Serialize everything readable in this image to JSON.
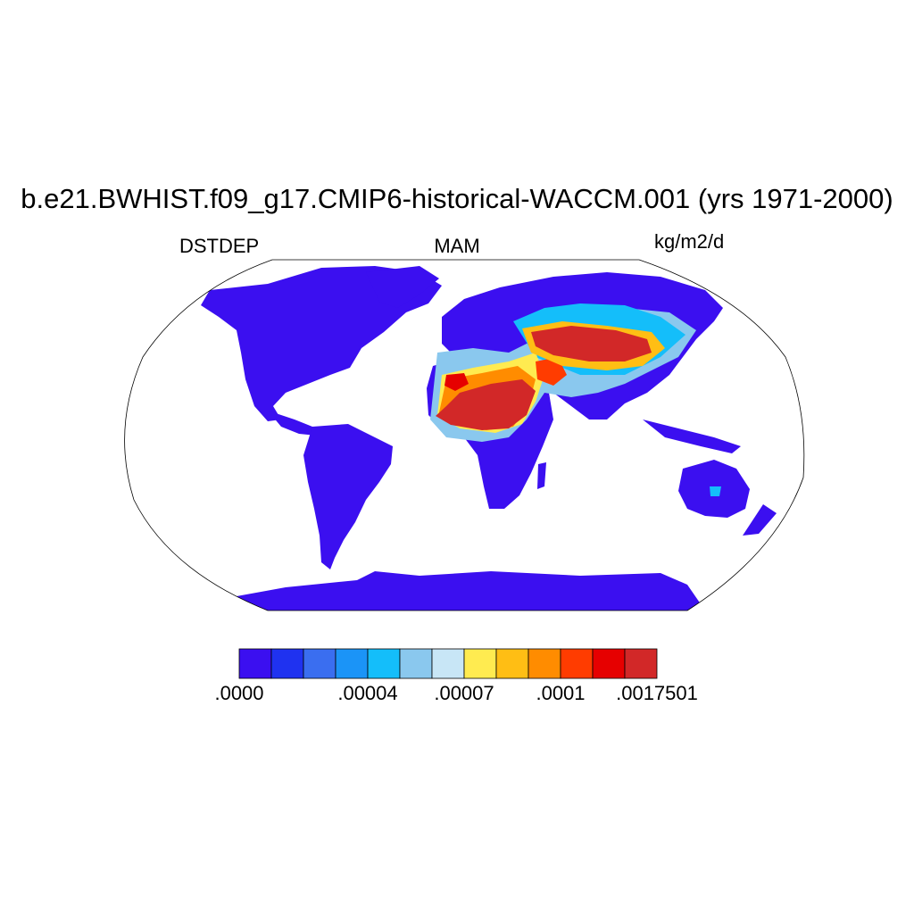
{
  "title": "b.e21.BWHIST.f09_g17.CMIP6-historical-WACCM.001 (yrs 1971-2000)",
  "left_label": "DSTDEP",
  "center_label": "MAM",
  "right_label": "kg/m2/d",
  "colorbar": {
    "colors": [
      "#3b0ff0",
      "#1f32f0",
      "#3a6ef0",
      "#1b94f7",
      "#14befa",
      "#8ac8ee",
      "#c8e6f6",
      "#ffeb50",
      "#ffbe14",
      "#ff8c00",
      "#ff3c00",
      "#e60000",
      "#d22828"
    ],
    "tick_labels": [
      ".0000",
      ".00004",
      ".00007",
      ".0001",
      ".0017501"
    ]
  },
  "map": {
    "projection": "Robinson",
    "land_color": "#3b0ff0",
    "ocean_color": "#ffffff"
  }
}
